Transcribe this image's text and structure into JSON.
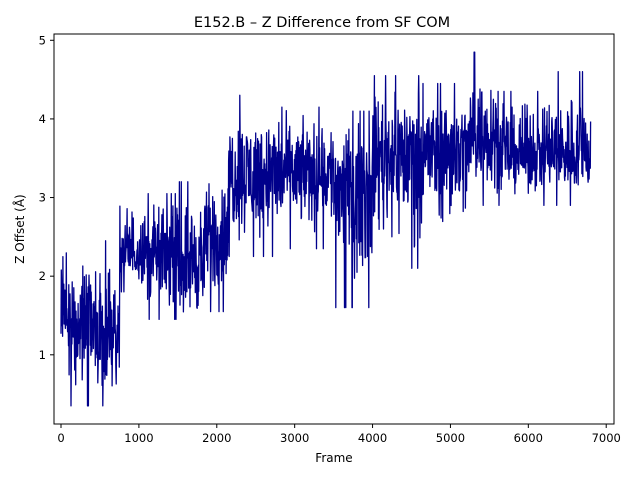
{
  "chart_data": {
    "type": "line",
    "title": "E152.B – Z Difference from SF COM",
    "xlabel": "Frame",
    "ylabel": "Z Offset (Å)",
    "xlim": [
      -90,
      7100
    ],
    "ylim": [
      0.12,
      5.08
    ],
    "xticks": [
      0,
      1000,
      2000,
      3000,
      4000,
      5000,
      6000,
      7000
    ],
    "yticks": [
      1,
      2,
      3,
      4,
      5
    ],
    "grid": false,
    "legend": "none",
    "colors": {
      "series": "#00008b",
      "axes": "#000000",
      "background": "#ffffff"
    },
    "series": [
      {
        "x_start": 0,
        "x_end": 6800,
        "note_points": "noisy trajectory; piecewise mean/range values below estimated from plot",
        "segments": [
          {
            "x": [
              0,
              100
            ],
            "mean": 1.5,
            "low": 0.9,
            "high": 2.75
          },
          {
            "x": [
              100,
              750
            ],
            "mean": 1.3,
            "low": 0.35,
            "high": 2.45
          },
          {
            "x": [
              750,
              1050
            ],
            "mean": 2.3,
            "low": 1.8,
            "high": 3.15
          },
          {
            "x": [
              1050,
              1500
            ],
            "mean": 2.3,
            "low": 1.45,
            "high": 3.05
          },
          {
            "x": [
              1500,
              1850
            ],
            "mean": 2.2,
            "low": 1.25,
            "high": 3.2
          },
          {
            "x": [
              1850,
              2150
            ],
            "mean": 2.5,
            "low": 1.55,
            "high": 3.45
          },
          {
            "x": [
              2150,
              2800
            ],
            "mean": 3.3,
            "low": 2.25,
            "high": 4.3
          },
          {
            "x": [
              2800,
              3500
            ],
            "mean": 3.35,
            "low": 2.35,
            "high": 4.15
          },
          {
            "x": [
              3500,
              4000
            ],
            "mean": 3.2,
            "low": 1.6,
            "high": 4.1
          },
          {
            "x": [
              4000,
              4600
            ],
            "mean": 3.6,
            "low": 2.1,
            "high": 4.55
          },
          {
            "x": [
              4600,
              5250
            ],
            "mean": 3.65,
            "low": 2.3,
            "high": 4.45
          },
          {
            "x": [
              5250,
              5600
            ],
            "mean": 3.8,
            "low": 2.9,
            "high": 4.85
          },
          {
            "x": [
              5600,
              6200
            ],
            "mean": 3.55,
            "low": 2.9,
            "high": 4.35
          },
          {
            "x": [
              6200,
              6800
            ],
            "mean": 3.55,
            "low": 2.9,
            "high": 4.6
          }
        ]
      }
    ]
  }
}
